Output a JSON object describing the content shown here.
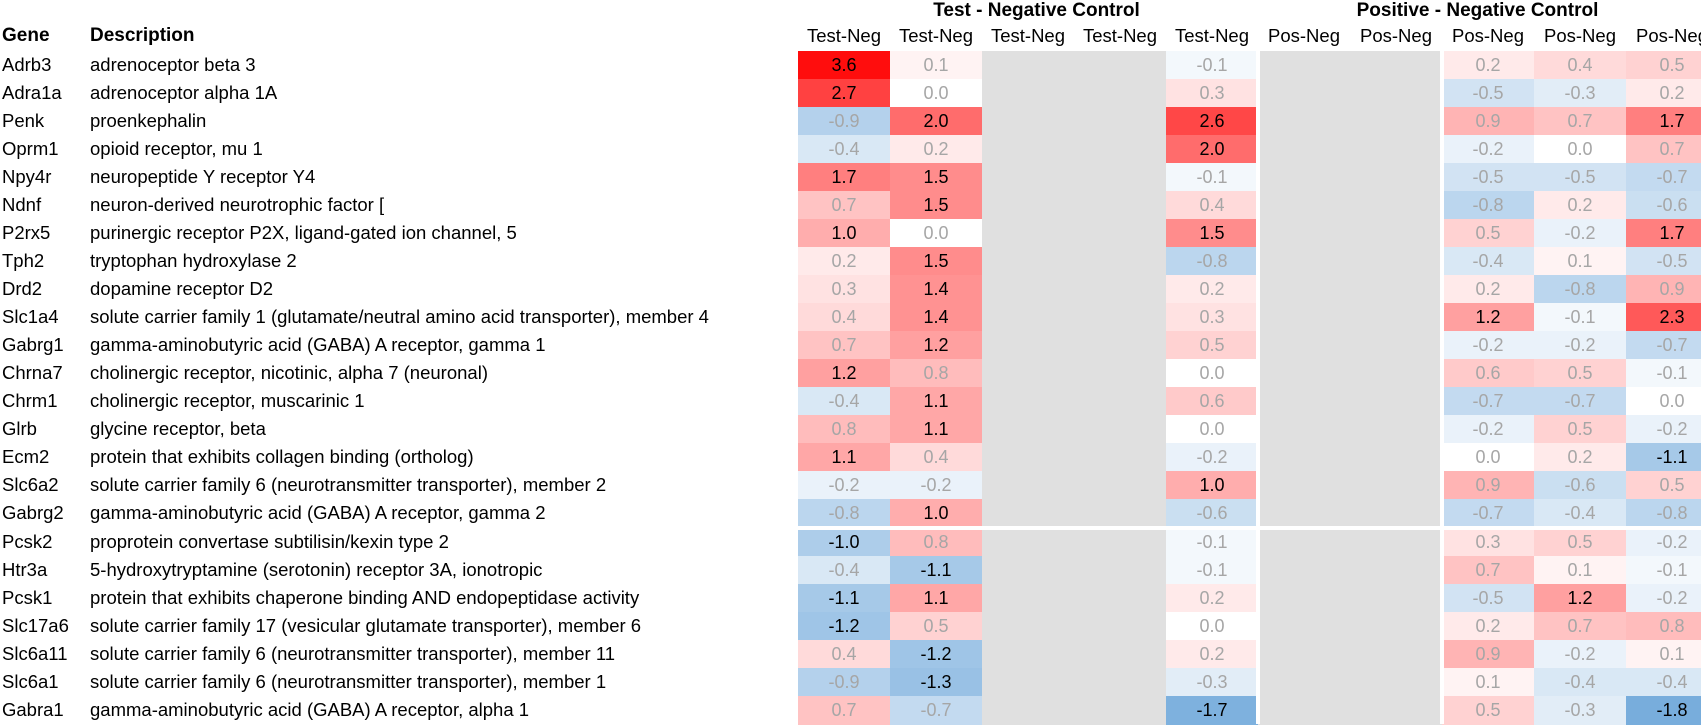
{
  "headers": {
    "gene": "Gene",
    "description": "Description"
  },
  "groups": [
    "Test - Negative Control",
    "Positive - Negative Control"
  ],
  "column_labels": [
    "Test-Neg",
    "Test-Neg",
    "Test-Neg",
    "Test-Neg",
    "Test-Neg",
    "Pos-Neg",
    "Pos-Neg",
    "Pos-Neg",
    "Pos-Neg",
    "Pos-Neg"
  ],
  "colors": {
    "positive": "#ff0000",
    "negative": "#5b9bd5",
    "empty": "#e0e0e0",
    "strong_text": "#000000",
    "weak_text": "#a6a6a6"
  },
  "chart_data": {
    "type": "heatmap",
    "title": "",
    "column_groups": [
      {
        "name": "Test - Negative Control",
        "columns": [
          0,
          1,
          2,
          3,
          4
        ]
      },
      {
        "name": "Positive - Negative Control",
        "columns": [
          5,
          6,
          7,
          8,
          9
        ]
      }
    ],
    "columns": [
      "Test-Neg",
      "Test-Neg",
      "Test-Neg",
      "Test-Neg",
      "Test-Neg",
      "Pos-Neg",
      "Pos-Neg",
      "Pos-Neg",
      "Pos-Neg",
      "Pos-Neg"
    ],
    "rows": [
      {
        "gene": "Adrb3",
        "description": "adrenoceptor beta 3",
        "values": [
          3.6,
          0.1,
          null,
          null,
          -0.1,
          null,
          null,
          0.2,
          0.4,
          0.5
        ],
        "bold": [
          true,
          false,
          false,
          false,
          false,
          false,
          false,
          false,
          false,
          false
        ]
      },
      {
        "gene": "Adra1a",
        "description": "adrenoceptor alpha 1A",
        "values": [
          2.7,
          0.0,
          null,
          null,
          0.3,
          null,
          null,
          -0.5,
          -0.3,
          0.2
        ],
        "bold": [
          true,
          false,
          false,
          false,
          false,
          false,
          false,
          false,
          false,
          false
        ]
      },
      {
        "gene": "Penk",
        "description": "proenkephalin",
        "values": [
          -0.9,
          2.0,
          null,
          null,
          2.6,
          null,
          null,
          0.9,
          0.7,
          1.7
        ],
        "bold": [
          false,
          true,
          false,
          false,
          true,
          false,
          false,
          false,
          false,
          true
        ]
      },
      {
        "gene": "Oprm1",
        "description": "opioid receptor, mu 1",
        "values": [
          -0.4,
          0.2,
          null,
          null,
          2.0,
          null,
          null,
          -0.2,
          0.0,
          0.7
        ],
        "bold": [
          false,
          false,
          false,
          false,
          true,
          false,
          false,
          false,
          false,
          false
        ]
      },
      {
        "gene": "Npy4r",
        "description": "neuropeptide Y receptor Y4",
        "values": [
          1.7,
          1.5,
          null,
          null,
          -0.1,
          null,
          null,
          -0.5,
          -0.5,
          -0.7
        ],
        "bold": [
          true,
          true,
          false,
          false,
          false,
          false,
          false,
          false,
          false,
          false
        ]
      },
      {
        "gene": "Ndnf",
        "description": "neuron-derived neurotrophic factor [",
        "values": [
          0.7,
          1.5,
          null,
          null,
          0.4,
          null,
          null,
          -0.8,
          0.2,
          -0.6
        ],
        "bold": [
          false,
          true,
          false,
          false,
          false,
          false,
          false,
          false,
          false,
          false
        ]
      },
      {
        "gene": "P2rx5",
        "description": "purinergic receptor P2X, ligand-gated ion channel, 5",
        "values": [
          1.0,
          0.0,
          null,
          null,
          1.5,
          null,
          null,
          0.5,
          -0.2,
          1.7
        ],
        "bold": [
          true,
          false,
          false,
          false,
          true,
          false,
          false,
          false,
          false,
          true
        ]
      },
      {
        "gene": "Tph2",
        "description": "tryptophan hydroxylase 2",
        "values": [
          0.2,
          1.5,
          null,
          null,
          -0.8,
          null,
          null,
          -0.4,
          0.1,
          -0.5
        ],
        "bold": [
          false,
          true,
          false,
          false,
          false,
          false,
          false,
          false,
          false,
          false
        ]
      },
      {
        "gene": "Drd2",
        "description": "dopamine receptor D2",
        "values": [
          0.3,
          1.4,
          null,
          null,
          0.2,
          null,
          null,
          0.2,
          -0.8,
          0.9
        ],
        "bold": [
          false,
          true,
          false,
          false,
          false,
          false,
          false,
          false,
          false,
          false
        ]
      },
      {
        "gene": "Slc1a4",
        "description": "solute carrier family 1 (glutamate/neutral amino acid transporter), member 4",
        "values": [
          0.4,
          1.4,
          null,
          null,
          0.3,
          null,
          null,
          1.2,
          -0.1,
          2.3
        ],
        "bold": [
          false,
          true,
          false,
          false,
          false,
          false,
          false,
          true,
          false,
          true
        ]
      },
      {
        "gene": "Gabrg1",
        "description": "gamma-aminobutyric acid (GABA) A receptor, gamma 1",
        "values": [
          0.7,
          1.2,
          null,
          null,
          0.5,
          null,
          null,
          -0.2,
          -0.2,
          -0.7
        ],
        "bold": [
          false,
          true,
          false,
          false,
          false,
          false,
          false,
          false,
          false,
          false
        ]
      },
      {
        "gene": "Chrna7",
        "description": "cholinergic receptor, nicotinic, alpha 7 (neuronal)",
        "values": [
          1.2,
          0.8,
          null,
          null,
          0.0,
          null,
          null,
          0.6,
          0.5,
          -0.1
        ],
        "bold": [
          true,
          false,
          false,
          false,
          false,
          false,
          false,
          false,
          false,
          false
        ]
      },
      {
        "gene": "Chrm1",
        "description": "cholinergic receptor, muscarinic 1",
        "values": [
          -0.4,
          1.1,
          null,
          null,
          0.6,
          null,
          null,
          -0.7,
          -0.7,
          0.0
        ],
        "bold": [
          false,
          true,
          false,
          false,
          false,
          false,
          false,
          false,
          false,
          false
        ]
      },
      {
        "gene": "Glrb",
        "description": "glycine receptor, beta",
        "values": [
          0.8,
          1.1,
          null,
          null,
          0.0,
          null,
          null,
          -0.2,
          0.5,
          -0.2
        ],
        "bold": [
          false,
          true,
          false,
          false,
          false,
          false,
          false,
          false,
          false,
          false
        ]
      },
      {
        "gene": "Ecm2",
        "description": "protein that exhibits collagen binding (ortholog)",
        "values": [
          1.1,
          0.4,
          null,
          null,
          -0.2,
          null,
          null,
          0.0,
          0.2,
          -1.1
        ],
        "bold": [
          true,
          false,
          false,
          false,
          false,
          false,
          false,
          false,
          false,
          true
        ]
      },
      {
        "gene": "Slc6a2",
        "description": "solute carrier family 6 (neurotransmitter transporter), member 2",
        "values": [
          -0.2,
          -0.2,
          null,
          null,
          1.0,
          null,
          null,
          0.9,
          -0.6,
          0.5
        ],
        "bold": [
          false,
          false,
          false,
          false,
          true,
          false,
          false,
          false,
          false,
          false
        ]
      },
      {
        "gene": "Gabrg2",
        "description": "gamma-aminobutyric acid (GABA) A receptor, gamma 2",
        "values": [
          -0.8,
          1.0,
          null,
          null,
          -0.6,
          null,
          null,
          -0.7,
          -0.4,
          -0.8
        ],
        "bold": [
          false,
          true,
          false,
          false,
          false,
          false,
          false,
          false,
          false,
          false
        ]
      },
      {
        "gene": "Pcsk2",
        "description": "proprotein convertase subtilisin/kexin type 2",
        "values": [
          -1.0,
          0.8,
          null,
          null,
          -0.1,
          null,
          null,
          0.3,
          0.5,
          -0.2
        ],
        "bold": [
          true,
          false,
          false,
          false,
          false,
          false,
          false,
          false,
          false,
          false
        ]
      },
      {
        "gene": "Htr3a",
        "description": "5-hydroxytryptamine (serotonin) receptor 3A, ionotropic",
        "values": [
          -0.4,
          -1.1,
          null,
          null,
          -0.1,
          null,
          null,
          0.7,
          0.1,
          -0.1
        ],
        "bold": [
          false,
          true,
          false,
          false,
          false,
          false,
          false,
          false,
          false,
          false
        ]
      },
      {
        "gene": "Pcsk1",
        "description": "protein that exhibits chaperone binding AND  endopeptidase activity",
        "values": [
          -1.1,
          1.1,
          null,
          null,
          0.2,
          null,
          null,
          -0.5,
          1.2,
          -0.2
        ],
        "bold": [
          true,
          true,
          false,
          false,
          false,
          false,
          false,
          false,
          true,
          false
        ]
      },
      {
        "gene": "Slc17a6",
        "description": "solute carrier family 17 (vesicular glutamate transporter), member 6",
        "values": [
          -1.2,
          0.5,
          null,
          null,
          0.0,
          null,
          null,
          0.2,
          0.7,
          0.8
        ],
        "bold": [
          true,
          false,
          false,
          false,
          false,
          false,
          false,
          false,
          false,
          false
        ]
      },
      {
        "gene": "Slc6a11",
        "description": "solute carrier family 6 (neurotransmitter transporter), member 11",
        "values": [
          0.4,
          -1.2,
          null,
          null,
          0.2,
          null,
          null,
          0.9,
          -0.2,
          0.1
        ],
        "bold": [
          false,
          true,
          false,
          false,
          false,
          false,
          false,
          false,
          false,
          false
        ]
      },
      {
        "gene": "Slc6a1",
        "description": "solute carrier family 6 (neurotransmitter transporter), member 1",
        "values": [
          -0.9,
          -1.3,
          null,
          null,
          -0.3,
          null,
          null,
          0.1,
          -0.4,
          -0.4
        ],
        "bold": [
          false,
          true,
          false,
          false,
          false,
          false,
          false,
          false,
          false,
          false
        ]
      },
      {
        "gene": "Gabra1",
        "description": "gamma-aminobutyric acid (GABA) A receptor, alpha 1",
        "values": [
          0.7,
          -0.7,
          null,
          null,
          -1.7,
          null,
          null,
          0.5,
          -0.3,
          -1.8
        ],
        "bold": [
          false,
          false,
          false,
          false,
          true,
          false,
          false,
          false,
          false,
          true
        ]
      }
    ],
    "color_scale": {
      "min": -2.0,
      "max": 3.6,
      "center": 0.0
    },
    "row_separator_after": 16
  }
}
